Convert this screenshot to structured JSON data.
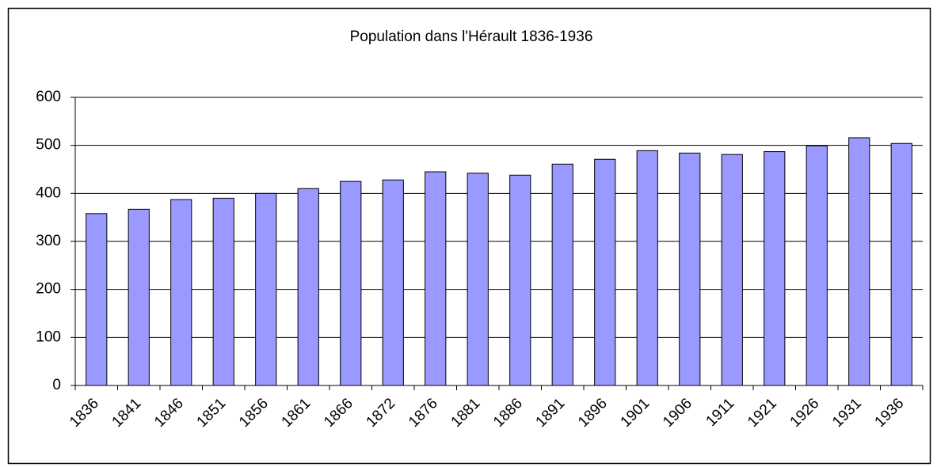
{
  "chart_data": {
    "type": "bar",
    "title": "Population dans l'Hérault 1836-1936",
    "categories": [
      "1836",
      "1841",
      "1846",
      "1851",
      "1856",
      "1861",
      "1866",
      "1872",
      "1876",
      "1881",
      "1886",
      "1891",
      "1896",
      "1901",
      "1906",
      "1911",
      "1921",
      "1926",
      "1931",
      "1936"
    ],
    "values": [
      358,
      367,
      387,
      390,
      400,
      410,
      425,
      428,
      445,
      442,
      438,
      461,
      471,
      489,
      484,
      481,
      487,
      499,
      516,
      504
    ],
    "color": "#9999ff",
    "ylim": [
      0,
      600
    ],
    "yticks": [
      0,
      100,
      200,
      300,
      400,
      500,
      600
    ],
    "grid": true
  }
}
